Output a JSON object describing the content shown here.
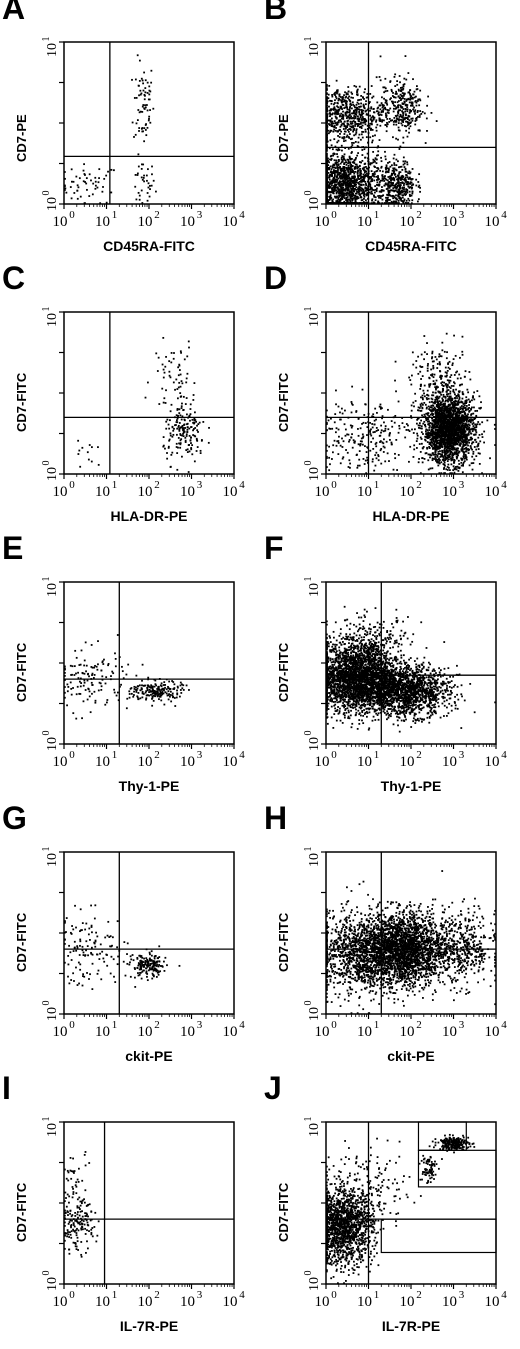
{
  "figure": {
    "panels": [
      {
        "letter": "A",
        "xlabel": "CD45RA-FITC",
        "ylabel": "CD7-PE"
      },
      {
        "letter": "B",
        "xlabel": "CD45RA-FITC",
        "ylabel": "CD7-PE"
      },
      {
        "letter": "C",
        "xlabel": "HLA-DR-PE",
        "ylabel": "CD7-FITC"
      },
      {
        "letter": "D",
        "xlabel": "HLA-DR-PE",
        "ylabel": "CD7-FITC"
      },
      {
        "letter": "E",
        "xlabel": "Thy-1-PE",
        "ylabel": "CD7-FITC"
      },
      {
        "letter": "F",
        "xlabel": "Thy-1-PE",
        "ylabel": "CD7-FITC"
      },
      {
        "letter": "G",
        "xlabel": "ckit-PE",
        "ylabel": "CD7-FITC"
      },
      {
        "letter": "H",
        "xlabel": "ckit-PE",
        "ylabel": "CD7-FITC"
      },
      {
        "letter": "I",
        "xlabel": "IL-7R-PE",
        "ylabel": "CD7-FITC"
      },
      {
        "letter": "J",
        "xlabel": "IL-7R-PE",
        "ylabel": "CD7-FITC"
      }
    ]
  },
  "chart_data": [
    {
      "panel": "A",
      "type": "scatter",
      "xlabel": "CD45RA-FITC",
      "ylabel": "CD7-PE",
      "xscale": "log",
      "xlim": [
        1,
        10000
      ],
      "x_ticks": [
        "10^0",
        "10^1",
        "10^2",
        "10^3",
        "10^4"
      ],
      "yscale": "log",
      "ylim": [
        1,
        10000
      ],
      "y_ticks": [
        "10^0",
        "10^1"
      ],
      "quadrant_gate": {
        "x": 12,
        "y": 15
      },
      "events": [
        {
          "x_center": 4,
          "y_center": 3,
          "x_sd_decades": 0.35,
          "y_sd_decades": 0.25,
          "count": 55
        },
        {
          "x_center": 70,
          "y_center": 3,
          "x_sd_decades": 0.15,
          "y_sd_decades": 0.3,
          "count": 35
        },
        {
          "x_center": 75,
          "y_center": 300,
          "x_sd_decades": 0.12,
          "y_sd_decades": 0.55,
          "count": 70
        }
      ]
    },
    {
      "panel": "B",
      "type": "scatter",
      "xlabel": "CD45RA-FITC",
      "ylabel": "CD7-PE",
      "xscale": "log",
      "xlim": [
        1,
        10000
      ],
      "x_ticks": [
        "10^0",
        "10^1",
        "10^2",
        "10^3",
        "10^4"
      ],
      "yscale": "log",
      "ylim": [
        1,
        10000
      ],
      "y_ticks": [
        "10^0",
        "10^1"
      ],
      "quadrant_gate": {
        "x": 10,
        "y": 25
      },
      "events": [
        {
          "x_center": 3,
          "y_center": 3,
          "x_sd_decades": 0.45,
          "y_sd_decades": 0.4,
          "count": 1300
        },
        {
          "x_center": 3,
          "y_center": 150,
          "x_sd_decades": 0.45,
          "y_sd_decades": 0.35,
          "count": 650
        },
        {
          "x_center": 60,
          "y_center": 250,
          "x_sd_decades": 0.25,
          "y_sd_decades": 0.35,
          "count": 300
        },
        {
          "x_center": 50,
          "y_center": 3,
          "x_sd_decades": 0.2,
          "y_sd_decades": 0.3,
          "count": 350
        }
      ]
    },
    {
      "panel": "C",
      "type": "scatter",
      "xlabel": "HLA-DR-PE",
      "ylabel": "CD7-FITC",
      "xscale": "log",
      "xlim": [
        1,
        10000
      ],
      "x_ticks": [
        "10^0",
        "10^1",
        "10^2",
        "10^3",
        "10^4"
      ],
      "yscale": "log",
      "ylim": [
        1,
        10000
      ],
      "y_ticks": [
        "10^0",
        "10^1"
      ],
      "quadrant_gate": {
        "x": 12,
        "y": 25
      },
      "events": [
        {
          "x_center": 700,
          "y_center": 10,
          "x_sd_decades": 0.25,
          "y_sd_decades": 0.35,
          "count": 170
        },
        {
          "x_center": 400,
          "y_center": 250,
          "x_sd_decades": 0.25,
          "y_sd_decades": 0.45,
          "count": 60
        },
        {
          "x_center": 3,
          "y_center": 5,
          "x_sd_decades": 0.4,
          "y_sd_decades": 0.3,
          "count": 12
        }
      ]
    },
    {
      "panel": "D",
      "type": "scatter",
      "xlabel": "HLA-DR-PE",
      "ylabel": "CD7-FITC",
      "xscale": "log",
      "xlim": [
        1,
        10000
      ],
      "x_ticks": [
        "10^0",
        "10^1",
        "10^2",
        "10^3",
        "10^4"
      ],
      "yscale": "log",
      "ylim": [
        1,
        10000
      ],
      "y_ticks": [
        "10^0",
        "10^1"
      ],
      "quadrant_gate": {
        "x": 10,
        "y": 25
      },
      "events": [
        {
          "x_center": 800,
          "y_center": 12,
          "x_sd_decades": 0.3,
          "y_sd_decades": 0.4,
          "count": 2000
        },
        {
          "x_center": 500,
          "y_center": 150,
          "x_sd_decades": 0.35,
          "y_sd_decades": 0.5,
          "count": 250
        },
        {
          "x_center": 8,
          "y_center": 10,
          "x_sd_decades": 0.6,
          "y_sd_decades": 0.45,
          "count": 250
        }
      ]
    },
    {
      "panel": "E",
      "type": "scatter",
      "xlabel": "Thy-1-PE",
      "ylabel": "CD7-FITC",
      "xscale": "log",
      "xlim": [
        1,
        10000
      ],
      "x_ticks": [
        "10^0",
        "10^1",
        "10^2",
        "10^3",
        "10^4"
      ],
      "yscale": "log",
      "ylim": [
        1,
        10000
      ],
      "y_ticks": [
        "10^0",
        "10^1"
      ],
      "quadrant_gate": {
        "x": 20,
        "y": 40
      },
      "events": [
        {
          "x_center": 150,
          "y_center": 20,
          "x_sd_decades": 0.3,
          "y_sd_decades": 0.13,
          "count": 200
        },
        {
          "x_center": 4,
          "y_center": 40,
          "x_sd_decades": 0.45,
          "y_sd_decades": 0.4,
          "count": 130
        }
      ]
    },
    {
      "panel": "F",
      "type": "scatter",
      "xlabel": "Thy-1-PE",
      "ylabel": "CD7-FITC",
      "xscale": "log",
      "xlim": [
        1,
        10000
      ],
      "x_ticks": [
        "10^0",
        "10^1",
        "10^2",
        "10^3",
        "10^4"
      ],
      "yscale": "log",
      "ylim": [
        1,
        10000
      ],
      "y_ticks": [
        "10^0",
        "10^1"
      ],
      "quadrant_gate": {
        "x": 20,
        "y": 50
      },
      "events": [
        {
          "x_center": 5,
          "y_center": 40,
          "x_sd_decades": 0.5,
          "y_sd_decades": 0.4,
          "count": 2400
        },
        {
          "x_center": 80,
          "y_center": 20,
          "x_sd_decades": 0.5,
          "y_sd_decades": 0.3,
          "count": 1400
        },
        {
          "x_center": 10,
          "y_center": 250,
          "x_sd_decades": 0.5,
          "y_sd_decades": 0.35,
          "count": 350
        }
      ]
    },
    {
      "panel": "G",
      "type": "scatter",
      "xlabel": "ckit-PE",
      "ylabel": "CD7-FITC",
      "xscale": "log",
      "xlim": [
        1,
        10000
      ],
      "x_ticks": [
        "10^0",
        "10^1",
        "10^2",
        "10^3",
        "10^4"
      ],
      "yscale": "log",
      "ylim": [
        1,
        10000
      ],
      "y_ticks": [
        "10^0",
        "10^1"
      ],
      "quadrant_gate": {
        "x": 20,
        "y": 40
      },
      "events": [
        {
          "x_center": 100,
          "y_center": 15,
          "x_sd_decades": 0.2,
          "y_sd_decades": 0.15,
          "count": 170
        },
        {
          "x_center": 4,
          "y_center": 40,
          "x_sd_decades": 0.45,
          "y_sd_decades": 0.45,
          "count": 130
        }
      ]
    },
    {
      "panel": "H",
      "type": "scatter",
      "xlabel": "ckit-PE",
      "ylabel": "CD7-FITC",
      "xscale": "log",
      "xlim": [
        1,
        10000
      ],
      "x_ticks": [
        "10^0",
        "10^1",
        "10^2",
        "10^3",
        "10^4"
      ],
      "yscale": "log",
      "ylim": [
        1,
        10000
      ],
      "y_ticks": [
        "10^0",
        "10^1"
      ],
      "quadrant_gate": {
        "x": 20,
        "y": 40
      },
      "events": [
        {
          "x_center": 60,
          "y_center": 40,
          "x_sd_decades": 0.5,
          "y_sd_decades": 0.45,
          "count": 2300
        },
        {
          "x_center": 5,
          "y_center": 30,
          "x_sd_decades": 0.5,
          "y_sd_decades": 0.5,
          "count": 900
        },
        {
          "x_center": 1500,
          "y_center": 40,
          "x_sd_decades": 0.4,
          "y_sd_decades": 0.45,
          "count": 450
        }
      ]
    },
    {
      "panel": "I",
      "type": "scatter",
      "xlabel": "IL-7R-PE",
      "ylabel": "CD7-FITC",
      "xscale": "log",
      "xlim": [
        1,
        10000
      ],
      "x_ticks": [
        "10^0",
        "10^1",
        "10^2",
        "10^3",
        "10^4"
      ],
      "yscale": "log",
      "ylim": [
        1,
        10000
      ],
      "y_ticks": [
        "10^0",
        "10^1"
      ],
      "quadrant_gate": {
        "x": 9,
        "y": 40
      },
      "events": [
        {
          "x_center": 2,
          "y_center": 25,
          "x_sd_decades": 0.2,
          "y_sd_decades": 0.3,
          "count": 140
        },
        {
          "x_center": 2,
          "y_center": 300,
          "x_sd_decades": 0.2,
          "y_sd_decades": 0.4,
          "count": 50
        }
      ]
    },
    {
      "panel": "J",
      "type": "scatter",
      "xlabel": "IL-7R-PE",
      "ylabel": "CD7-FITC",
      "xscale": "log",
      "xlim": [
        1,
        10000
      ],
      "x_ticks": [
        "10^0",
        "10^1",
        "10^2",
        "10^3",
        "10^4"
      ],
      "yscale": "log",
      "ylim": [
        1,
        10000
      ],
      "y_ticks": [
        "10^0",
        "10^1"
      ],
      "quadrant_gate": {
        "x": 10,
        "y": 40
      },
      "events": [
        {
          "x_center": 2.5,
          "y_center": 25,
          "x_sd_decades": 0.35,
          "y_sd_decades": 0.45,
          "count": 1400
        },
        {
          "x_center": 10,
          "y_center": 200,
          "x_sd_decades": 0.5,
          "y_sd_decades": 0.5,
          "count": 180
        },
        {
          "x_center": 1000,
          "y_center": 3000,
          "x_sd_decades": 0.18,
          "y_sd_decades": 0.08,
          "count": 220
        },
        {
          "x_center": 250,
          "y_center": 700,
          "x_sd_decades": 0.1,
          "y_sd_decades": 0.2,
          "count": 70
        }
      ],
      "inset_gates": [
        {
          "x_range": [
            150,
            2000
          ],
          "y_range": [
            2000,
            10000
          ]
        },
        {
          "x_range": [
            150,
            10000
          ],
          "y_range": [
            250,
            2000
          ]
        },
        {
          "x_range": [
            20,
            10000
          ],
          "y_range": [
            6,
            40
          ]
        }
      ]
    }
  ]
}
